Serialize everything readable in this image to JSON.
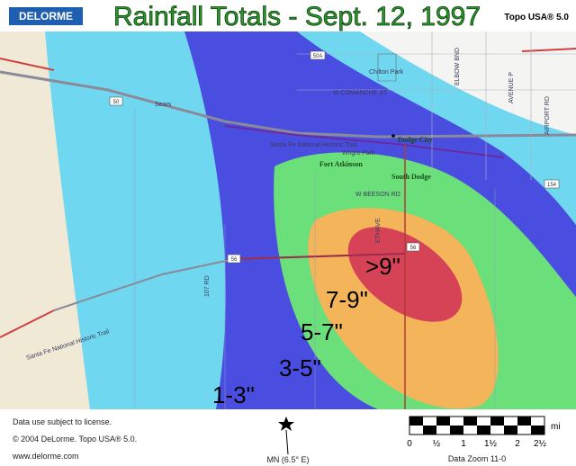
{
  "header": {
    "logo": "DELORME",
    "title": "Rainfall Totals - Sept. 12, 1997",
    "product": "Topo USA® 5.0"
  },
  "map_labels": {
    "streets": [
      "W COMANCHE ST",
      "Santa Fe National Historic Trail",
      "W BEESON RD",
      "ELBOW BND",
      "AVENUE P",
      "AIRPORT RD",
      "ETHAVE",
      "Santa Fe National Historic Trail",
      "107 RD",
      "Wright Park",
      "Chilton Park",
      "Sears"
    ],
    "places": [
      "Dodge City",
      "Fort Atkinson",
      "South Dodge"
    ],
    "shields": [
      "50A",
      "50",
      "56",
      "154"
    ]
  },
  "zones": [
    ">9\"",
    "7-9\"",
    "5-7\"",
    "3-5\"",
    "1-3\""
  ],
  "footer": {
    "license": "Data use subject to license.",
    "copyright": "© 2004 DeLorme. Topo USA® 5.0.",
    "website": "www.delorme.com",
    "north": "MN (6.5° E)",
    "zoom": "Data Zoom 11-0",
    "scale_labels": [
      "0",
      "½",
      "1",
      "1½",
      "2",
      "2½"
    ],
    "scale_unit": "mi"
  }
}
